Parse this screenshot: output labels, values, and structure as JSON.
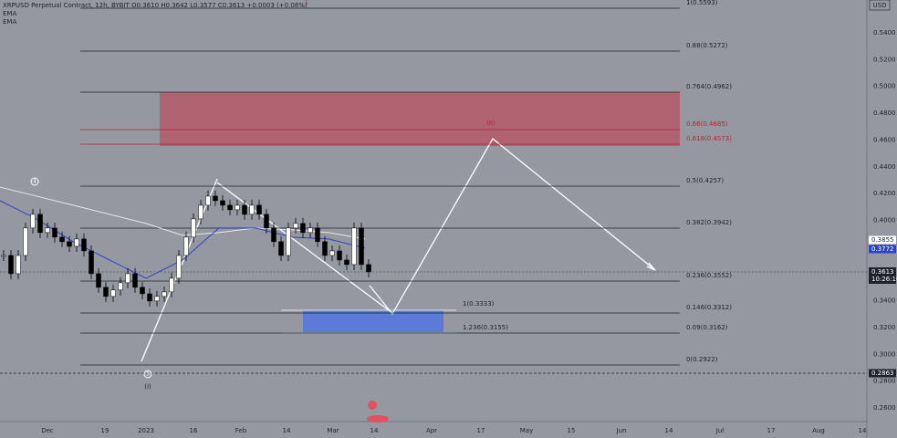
{
  "header": {
    "symbol": "XRPUSD Perpetual Contract, 12h, BYBIT  O0.3610  H0.3642  L0.3577  C0.3613  +0.0003 (+0.08%)",
    "indicators": [
      "EMA",
      "EMA"
    ]
  },
  "currency": "USD",
  "price_axis": [
    "0.5400",
    "0.5200",
    "0.5000",
    "0.4800",
    "0.4600",
    "0.4400",
    "0.4200",
    "0.4000",
    "0.3800",
    "0.3600",
    "0.3400",
    "0.3200",
    "0.3000",
    "0.2800",
    "0.2600"
  ],
  "time_axis": [
    "Dec",
    "19",
    "2023",
    "16",
    "Feb",
    "14",
    "Mar",
    "14",
    "Apr",
    "17",
    "May",
    "15",
    "Jun",
    "14",
    "Jul",
    "17",
    "Aug",
    "14"
  ],
  "fib_levels": [
    "1(0.5593)",
    "0.88(0.5272)",
    "0.764(0.4962)",
    "0.66(0.4685)",
    "0.618(0.4573)",
    "0.5(0.4257)",
    "0.382(0.3942)",
    "0.236(0.3552)",
    "0.146(0.3312)",
    "0.09(0.3162)",
    "0(0.2922)"
  ],
  "extension_levels": [
    "1(0.3333)",
    "1.236(0.3155)"
  ],
  "price_tags": {
    "ema_fast": "0.3855",
    "ema_slow": "0.3772",
    "last": "0.3613",
    "countdown": "10:26:10",
    "low": "0.2863"
  },
  "wave_labels": {
    "w4": "4",
    "w5": "5",
    "wI": "(I)",
    "wII": "(II)"
  },
  "price_closes": [
    0.3738,
    0.3602,
    0.3738,
    0.3943,
    0.4045,
    0.3909,
    0.3943,
    0.3875,
    0.3841,
    0.3806,
    0.3861,
    0.3772,
    0.3602,
    0.35,
    0.3432,
    0.348,
    0.3534,
    0.3602,
    0.35,
    0.3452,
    0.3398,
    0.3432,
    0.3466,
    0.3568,
    0.3738,
    0.3875,
    0.4011,
    0.4113,
    0.4181,
    0.4147,
    0.4113,
    0.4079,
    0.4113,
    0.4045,
    0.4113,
    0.4045,
    0.3943,
    0.3841,
    0.3738,
    0.3943,
    0.3977,
    0.3909,
    0.3943,
    0.3841,
    0.3738,
    0.3772,
    0.3704,
    0.367,
    0.3943,
    0.367,
    0.3616
  ],
  "ema_fast": [
    0.4249,
    0.4181,
    0.4113,
    0.4045,
    0.3977,
    0.3888,
    0.3909,
    0.3943,
    0.3929,
    0.3909,
    0.3861
  ],
  "ema_slow": [
    0.4147,
    0.4011,
    0.3841,
    0.3704,
    0.3568,
    0.3704,
    0.3943,
    0.3943,
    0.3875,
    0.3861,
    0.3793
  ]
}
